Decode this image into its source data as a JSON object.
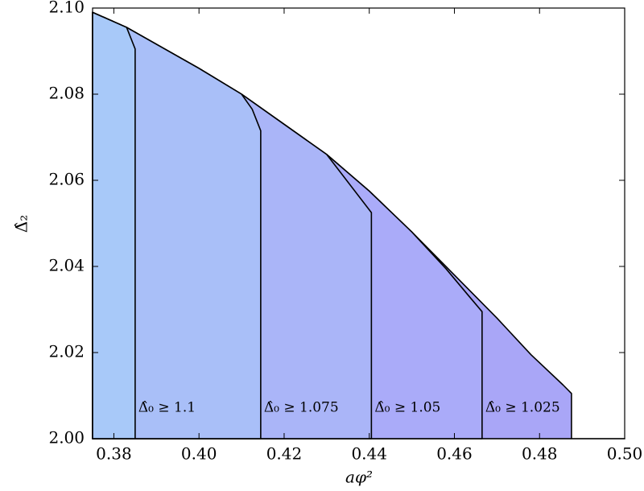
{
  "chart_data": {
    "type": "area",
    "xlabel": "aφ²",
    "ylabel": "Δ̂₂",
    "xlim": [
      0.375,
      0.5
    ],
    "ylim": [
      2.0,
      2.1
    ],
    "xticks": [
      0.38,
      {
        "value": 0.4,
        "label": "0.40"
      },
      0.42,
      0.44,
      0.46,
      0.48,
      {
        "value": 0.5,
        "label": "0.50"
      }
    ],
    "yticks": [
      {
        "value": 2.0,
        "label": "2.00"
      },
      2.02,
      2.04,
      2.06,
      2.08,
      {
        "value": 2.1,
        "label": "2.10"
      }
    ],
    "series": [
      {
        "name": "Δ̂₀ ≥ 1.1",
        "color": "#a8c9f9",
        "x": [
          0.375,
          0.383,
          0.385,
          0.385
        ],
        "y": [
          2.099,
          2.0955,
          2.0905,
          2.0
        ]
      },
      {
        "name": "Δ̂₀ ≥ 1.075",
        "color": "#a9bff8",
        "x": [
          0.375,
          0.383,
          0.4,
          0.41,
          0.4125,
          0.4145,
          0.4145
        ],
        "y": [
          2.099,
          2.0955,
          2.086,
          2.08,
          2.0765,
          2.0715,
          2.0
        ]
      },
      {
        "name": "Δ̂₀ ≥ 1.05",
        "color": "#aab5f8",
        "x": [
          0.375,
          0.383,
          0.4,
          0.41,
          0.42,
          0.43,
          0.4405,
          0.4405
        ],
        "y": [
          2.099,
          2.0955,
          2.086,
          2.08,
          2.073,
          2.066,
          2.0525,
          2.0
        ]
      },
      {
        "name": "Δ̂₀ ≥ 1.025",
        "color": "#aaabf9",
        "x": [
          0.375,
          0.383,
          0.4,
          0.41,
          0.42,
          0.43,
          0.44,
          0.45,
          0.458,
          0.4635,
          0.4665,
          0.4665
        ],
        "y": [
          2.099,
          2.0955,
          2.086,
          2.08,
          2.073,
          2.066,
          2.0575,
          2.048,
          2.0395,
          2.033,
          2.0295,
          2.0
        ]
      },
      {
        "color": "#a9a6f7",
        "x": [
          0.375,
          0.383,
          0.4,
          0.41,
          0.42,
          0.43,
          0.44,
          0.45,
          0.46,
          0.47,
          0.478,
          0.4855,
          0.4875,
          0.4875,
          0.5
        ],
        "y": [
          2.099,
          2.0955,
          2.086,
          2.08,
          2.073,
          2.066,
          2.0575,
          2.048,
          2.038,
          2.028,
          2.0195,
          2.0125,
          2.0105,
          2.0,
          2.0
        ]
      }
    ]
  }
}
